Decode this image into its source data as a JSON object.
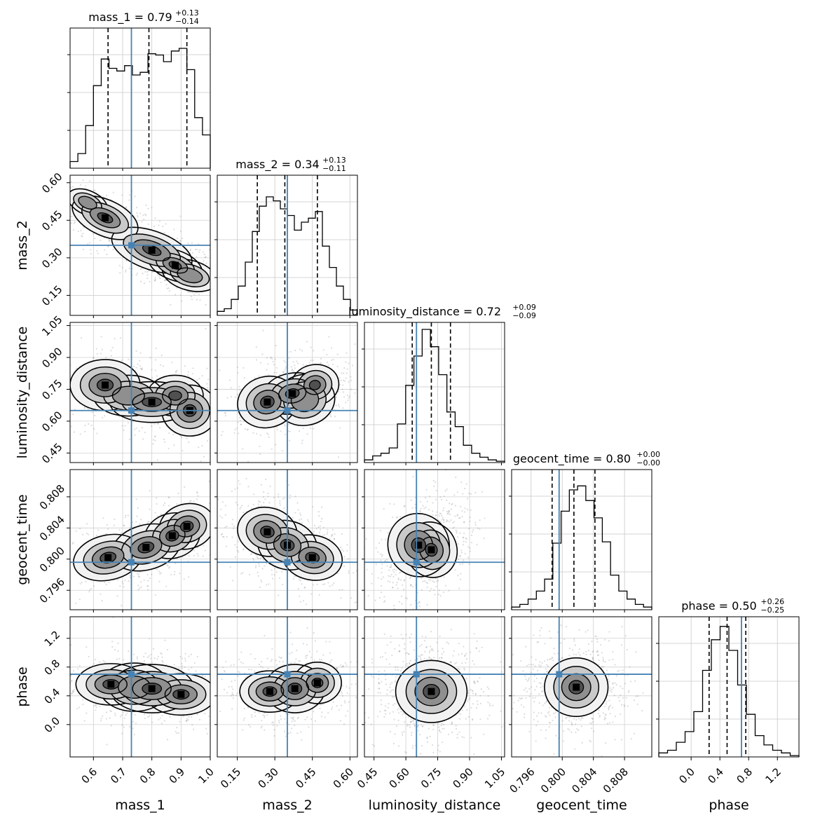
{
  "chart_data": {
    "type": "corner",
    "parameters": [
      "mass_1",
      "mass_2",
      "luminosity_distance",
      "geocent_time",
      "phase"
    ],
    "ranges": [
      [
        0.52,
        1.0
      ],
      [
        0.07,
        0.63
      ],
      [
        0.405,
        1.065
      ],
      [
        0.7935,
        0.8115
      ],
      [
        -0.45,
        1.5
      ]
    ],
    "truths": [
      0.73,
      0.35,
      0.65,
      0.7996,
      0.7
    ],
    "truth_color": "#4682b4",
    "grid": true,
    "titles": [
      {
        "label": "mass_1 = 0.79",
        "plus": "+0.13",
        "minus": "−0.14"
      },
      {
        "label": "mass_2 = 0.34",
        "plus": "+0.13",
        "minus": "−0.11"
      },
      {
        "label": "luminosity_distance = 0.72",
        "plus": "+0.09",
        "minus": "−0.09"
      },
      {
        "label": "geocent_time = 0.80",
        "plus": "+0.00",
        "minus": "−0.00"
      },
      {
        "label": "phase = 0.50",
        "plus": "+0.26",
        "minus": "−0.25"
      }
    ],
    "quantiles": [
      [
        0.65,
        0.79,
        0.92
      ],
      [
        0.23,
        0.34,
        0.47
      ],
      [
        0.63,
        0.72,
        0.81
      ],
      [
        0.7987,
        0.8015,
        0.8042
      ],
      [
        0.25,
        0.5,
        0.76
      ]
    ],
    "ticks": [
      [
        "0.6",
        "0.7",
        "0.8",
        "0.9",
        "1.0"
      ],
      [
        "0.15",
        "0.30",
        "0.45",
        "0.60"
      ],
      [
        "0.45",
        "0.60",
        "0.75",
        "0.90",
        "1.05"
      ],
      [
        "0.796",
        "0.800",
        "0.804",
        "0.808"
      ],
      [
        "0.0",
        "0.4",
        "0.8",
        "1.2"
      ]
    ],
    "histograms": [
      [
        0.05,
        0.11,
        0.32,
        0.62,
        0.82,
        0.75,
        0.73,
        0.77,
        0.7,
        0.72,
        0.86,
        0.85,
        0.8,
        0.88,
        0.9,
        0.74,
        0.38,
        0.25
      ],
      [
        0.03,
        0.05,
        0.12,
        0.22,
        0.4,
        0.63,
        0.82,
        0.89,
        0.86,
        0.8,
        0.75,
        0.64,
        0.7,
        0.73,
        0.78,
        0.52,
        0.36,
        0.22,
        0.12,
        0.04
      ],
      [
        0.02,
        0.05,
        0.07,
        0.11,
        0.29,
        0.58,
        0.8,
        1.0,
        0.87,
        0.66,
        0.38,
        0.27,
        0.13,
        0.07,
        0.04,
        0.02,
        0.01
      ],
      [
        0.02,
        0.04,
        0.08,
        0.14,
        0.23,
        0.5,
        0.74,
        0.9,
        0.93,
        0.82,
        0.69,
        0.51,
        0.26,
        0.14,
        0.08,
        0.04,
        0.02
      ],
      [
        0.03,
        0.05,
        0.11,
        0.19,
        0.34,
        0.65,
        0.88,
        0.98,
        0.8,
        0.54,
        0.32,
        0.16,
        0.09,
        0.05,
        0.03,
        0.01
      ]
    ],
    "blobs": [
      [],
      [
        [
          [
            0.64,
            0.46,
            0.05,
            0.03,
            -0.5,
            1.0
          ],
          [
            0.8,
            0.33,
            0.06,
            0.032,
            -0.4,
            0.75
          ],
          [
            0.88,
            0.27,
            0.04,
            0.025,
            -0.4,
            0.8
          ],
          [
            0.93,
            0.23,
            0.04,
            0.025,
            -0.3,
            0.6
          ],
          [
            0.58,
            0.52,
            0.03,
            0.02,
            -0.5,
            0.4
          ]
        ]
      ],
      [
        [
          [
            0.64,
            0.77,
            0.05,
            0.05,
            0,
            1.0
          ],
          [
            0.8,
            0.69,
            0.06,
            0.04,
            0,
            0.85
          ],
          [
            0.88,
            0.72,
            0.04,
            0.04,
            0,
            0.7
          ],
          [
            0.93,
            0.65,
            0.04,
            0.05,
            0,
            0.75
          ],
          [
            0.72,
            0.72,
            0.05,
            0.04,
            0,
            0.6
          ]
        ],
        [
          [
            0.27,
            0.69,
            0.05,
            0.05,
            0.3,
            1.0
          ],
          [
            0.37,
            0.73,
            0.05,
            0.04,
            0.2,
            0.75
          ],
          [
            0.46,
            0.77,
            0.04,
            0.04,
            0.2,
            0.7
          ],
          [
            0.42,
            0.7,
            0.05,
            0.05,
            0.2,
            0.6
          ]
        ]
      ],
      [
        [
          [
            0.65,
            0.8002,
            0.05,
            0.0012,
            0.25,
            1.0
          ],
          [
            0.78,
            0.8015,
            0.05,
            0.0012,
            0.3,
            0.8
          ],
          [
            0.87,
            0.803,
            0.04,
            0.0012,
            0.3,
            0.8
          ],
          [
            0.92,
            0.8042,
            0.04,
            0.0012,
            0.3,
            0.75
          ]
        ],
        [
          [
            0.27,
            0.8035,
            0.05,
            0.0013,
            -0.25,
            1.0
          ],
          [
            0.35,
            0.8018,
            0.05,
            0.0013,
            -0.3,
            0.85
          ],
          [
            0.45,
            0.8002,
            0.05,
            0.0012,
            -0.2,
            0.8
          ]
        ],
        [
          [
            0.66,
            0.8018,
            0.06,
            0.0017,
            0.5,
            1.0
          ],
          [
            0.72,
            0.8012,
            0.05,
            0.0015,
            0.4,
            0.75
          ]
        ]
      ],
      [
        [
          [
            0.66,
            0.56,
            0.05,
            0.12,
            0,
            1.0
          ],
          [
            0.8,
            0.5,
            0.06,
            0.14,
            0,
            0.85
          ],
          [
            0.9,
            0.42,
            0.05,
            0.12,
            0,
            0.8
          ],
          [
            0.74,
            0.52,
            0.05,
            0.14,
            0,
            0.6
          ]
        ],
        [
          [
            0.28,
            0.46,
            0.05,
            0.12,
            0,
            1.0
          ],
          [
            0.38,
            0.5,
            0.05,
            0.14,
            0,
            0.85
          ],
          [
            0.47,
            0.58,
            0.04,
            0.12,
            0,
            0.8
          ]
        ],
        [
          [
            0.72,
            0.46,
            0.07,
            0.18,
            0,
            1.0
          ]
        ],
        [
          [
            0.8018,
            0.52,
            0.0017,
            0.17,
            0,
            1.0
          ]
        ]
      ]
    ]
  }
}
